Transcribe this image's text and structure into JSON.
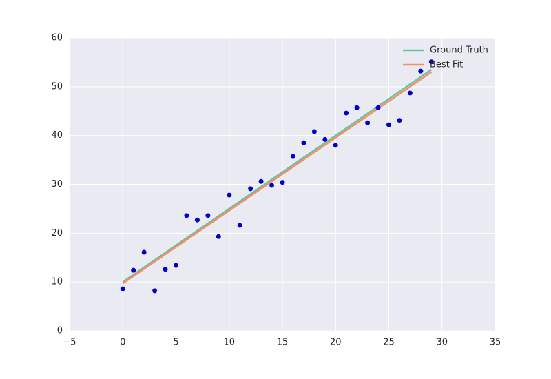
{
  "chart_data": {
    "type": "scatter",
    "x": [
      0,
      1,
      2,
      3,
      4,
      5,
      6,
      7,
      8,
      9,
      10,
      11,
      12,
      13,
      14,
      15,
      16,
      17,
      18,
      19,
      20,
      21,
      22,
      23,
      24,
      25,
      26,
      27,
      28,
      29
    ],
    "values": [
      8.6,
      12.4,
      16.1,
      8.2,
      12.6,
      13.4,
      23.6,
      22.7,
      23.6,
      19.3,
      27.8,
      21.6,
      29.1,
      30.6,
      29.8,
      30.4,
      35.7,
      38.5,
      40.8,
      39.2,
      38.0,
      44.6,
      45.7,
      42.6,
      45.7,
      42.2,
      43.1,
      48.7,
      53.2,
      55.1
    ],
    "color": "#0000cc",
    "lines": [
      {
        "name": "Ground Truth",
        "color": "#66c2a5",
        "x": [
          0,
          29
        ],
        "values": [
          10,
          53.5
        ]
      },
      {
        "name": "Best Fit",
        "color": "#fc8d62",
        "x": [
          0,
          29
        ],
        "values": [
          9.7,
          53.0
        ]
      }
    ],
    "xlim": [
      -5,
      35
    ],
    "ylim": [
      0,
      60
    ],
    "xticks": [
      {
        "value": -5,
        "label": "−5"
      },
      0,
      5,
      10,
      15,
      20,
      25,
      30,
      35
    ],
    "yticks": [
      0,
      10,
      20,
      30,
      40,
      50,
      60
    ],
    "grid": true,
    "legend": "upper right"
  }
}
